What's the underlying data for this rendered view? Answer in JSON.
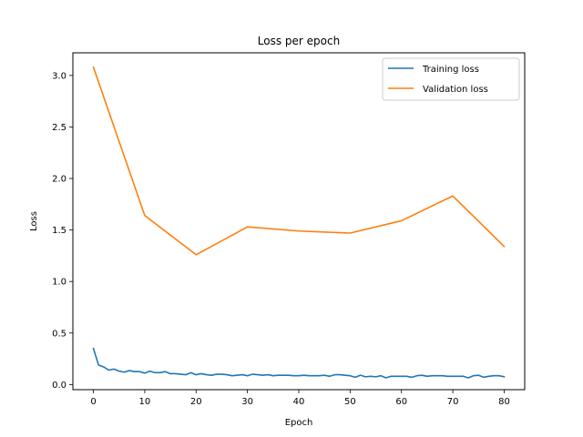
{
  "chart_data": {
    "type": "line",
    "title": "Loss per epoch",
    "xlabel": "Epoch",
    "ylabel": "Loss",
    "xlim": [
      -4,
      84
    ],
    "ylim": [
      -0.05,
      3.22
    ],
    "xticks": [
      0,
      10,
      20,
      30,
      40,
      50,
      60,
      70,
      80
    ],
    "yticks": [
      0.0,
      0.5,
      1.0,
      1.5,
      2.0,
      2.5,
      3.0
    ],
    "ytick_labels": [
      "0.0",
      "0.5",
      "1.0",
      "1.5",
      "2.0",
      "2.5",
      "3.0"
    ],
    "grid": false,
    "legend_position": "top-right",
    "series": [
      {
        "name": "Training loss",
        "color": "#1f77b4",
        "x": [
          0,
          1,
          2,
          3,
          4,
          5,
          6,
          7,
          8,
          9,
          10,
          11,
          12,
          13,
          14,
          15,
          16,
          17,
          18,
          19,
          20,
          21,
          22,
          23,
          24,
          25,
          26,
          27,
          28,
          29,
          30,
          31,
          32,
          33,
          34,
          35,
          36,
          37,
          38,
          39,
          40,
          41,
          42,
          43,
          44,
          45,
          46,
          47,
          48,
          49,
          50,
          51,
          52,
          53,
          54,
          55,
          56,
          57,
          58,
          59,
          60,
          61,
          62,
          63,
          64,
          65,
          66,
          67,
          68,
          69,
          70,
          71,
          72,
          73,
          74,
          75,
          76,
          77,
          78,
          79,
          80
        ],
        "y": [
          0.35,
          0.19,
          0.17,
          0.14,
          0.15,
          0.13,
          0.12,
          0.135,
          0.125,
          0.125,
          0.11,
          0.13,
          0.115,
          0.115,
          0.125,
          0.105,
          0.105,
          0.1,
          0.095,
          0.115,
          0.095,
          0.105,
          0.095,
          0.09,
          0.1,
          0.1,
          0.095,
          0.085,
          0.09,
          0.095,
          0.085,
          0.1,
          0.095,
          0.09,
          0.095,
          0.085,
          0.09,
          0.09,
          0.09,
          0.085,
          0.085,
          0.09,
          0.085,
          0.085,
          0.085,
          0.09,
          0.08,
          0.095,
          0.095,
          0.09,
          0.085,
          0.07,
          0.09,
          0.075,
          0.08,
          0.075,
          0.085,
          0.065,
          0.08,
          0.08,
          0.08,
          0.08,
          0.07,
          0.085,
          0.09,
          0.08,
          0.085,
          0.085,
          0.085,
          0.08,
          0.08,
          0.08,
          0.08,
          0.065,
          0.085,
          0.09,
          0.07,
          0.08,
          0.085,
          0.085,
          0.075
        ]
      },
      {
        "name": "Validation loss",
        "color": "#ff7f0e",
        "x": [
          0,
          10,
          20,
          30,
          40,
          50,
          60,
          70,
          80
        ],
        "y": [
          3.08,
          1.64,
          1.26,
          1.53,
          1.49,
          1.47,
          1.59,
          1.83,
          1.34
        ]
      }
    ]
  }
}
